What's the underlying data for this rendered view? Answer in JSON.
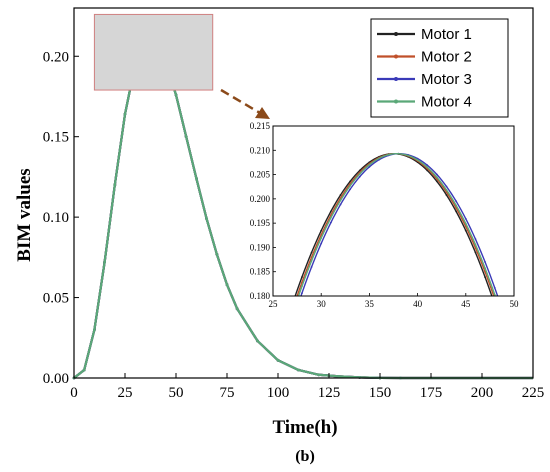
{
  "chart_data": {
    "type": "line",
    "xlabel": "Time(h)",
    "ylabel": "BIM values",
    "panel_label": "(b)",
    "xlim": [
      0,
      225
    ],
    "ylim": [
      0,
      0.23
    ],
    "xticks": [
      0,
      25,
      50,
      75,
      100,
      125,
      150,
      175,
      200,
      225
    ],
    "yticks": [
      0.0,
      0.05,
      0.1,
      0.15,
      0.2
    ],
    "ytick_labels": [
      "0.00",
      "0.05",
      "0.10",
      "0.15",
      "0.20"
    ],
    "legend_position": "top-right",
    "x": [
      0,
      5,
      10,
      15,
      20,
      25,
      30,
      35,
      37.5,
      40,
      45,
      50,
      55,
      60,
      65,
      70,
      75,
      80,
      90,
      100,
      110,
      120,
      130,
      140,
      150,
      160,
      175,
      200,
      225
    ],
    "series": [
      {
        "name": "Motor 1",
        "color": "#222222",
        "values": [
          0,
          0.005,
          0.03,
          0.072,
          0.12,
          0.164,
          0.195,
          0.209,
          0.2095,
          0.208,
          0.196,
          0.176,
          0.15,
          0.124,
          0.099,
          0.077,
          0.058,
          0.043,
          0.023,
          0.011,
          0.005,
          0.002,
          0.001,
          0.0004,
          0.0001,
          0,
          0,
          0,
          0
        ]
      },
      {
        "name": "Motor 2",
        "color": "#c0502a",
        "values": [
          0,
          0.005,
          0.03,
          0.072,
          0.12,
          0.164,
          0.195,
          0.209,
          0.2095,
          0.208,
          0.196,
          0.176,
          0.15,
          0.124,
          0.099,
          0.077,
          0.058,
          0.043,
          0.023,
          0.011,
          0.005,
          0.002,
          0.001,
          0.0004,
          0.0001,
          0,
          0,
          0,
          0
        ]
      },
      {
        "name": "Motor 3",
        "color": "#3a3ab8",
        "values": [
          0,
          0.005,
          0.03,
          0.072,
          0.12,
          0.164,
          0.195,
          0.209,
          0.2095,
          0.208,
          0.196,
          0.176,
          0.15,
          0.124,
          0.099,
          0.077,
          0.058,
          0.043,
          0.023,
          0.011,
          0.005,
          0.002,
          0.001,
          0.0004,
          0.0001,
          0,
          0,
          0,
          0
        ]
      },
      {
        "name": "Motor 4",
        "color": "#5aa878",
        "values": [
          0,
          0.005,
          0.03,
          0.072,
          0.12,
          0.164,
          0.195,
          0.209,
          0.2095,
          0.208,
          0.196,
          0.176,
          0.15,
          0.124,
          0.099,
          0.077,
          0.058,
          0.043,
          0.023,
          0.011,
          0.005,
          0.002,
          0.001,
          0.0004,
          0.0001,
          0,
          0,
          0,
          0
        ]
      }
    ],
    "zoom_region": {
      "xlim": [
        10,
        68
      ],
      "ylim": [
        0.179,
        0.226
      ]
    },
    "inset": {
      "xlim": [
        25,
        50
      ],
      "ylim": [
        0.18,
        0.215
      ],
      "xticks": [
        25,
        30,
        35,
        40,
        45,
        50
      ],
      "yticks": [
        0.18,
        0.185,
        0.19,
        0.195,
        0.2,
        0.205,
        0.21,
        0.215
      ],
      "ytick_labels": [
        "0.180",
        "0.185",
        "0.190",
        "0.195",
        "0.200",
        "0.205",
        "0.210",
        "0.215"
      ],
      "peak_x": 37.5,
      "peak_y": 0.2093,
      "series_offsets_h": [
        0,
        0.2,
        0.6,
        0.35
      ]
    }
  }
}
